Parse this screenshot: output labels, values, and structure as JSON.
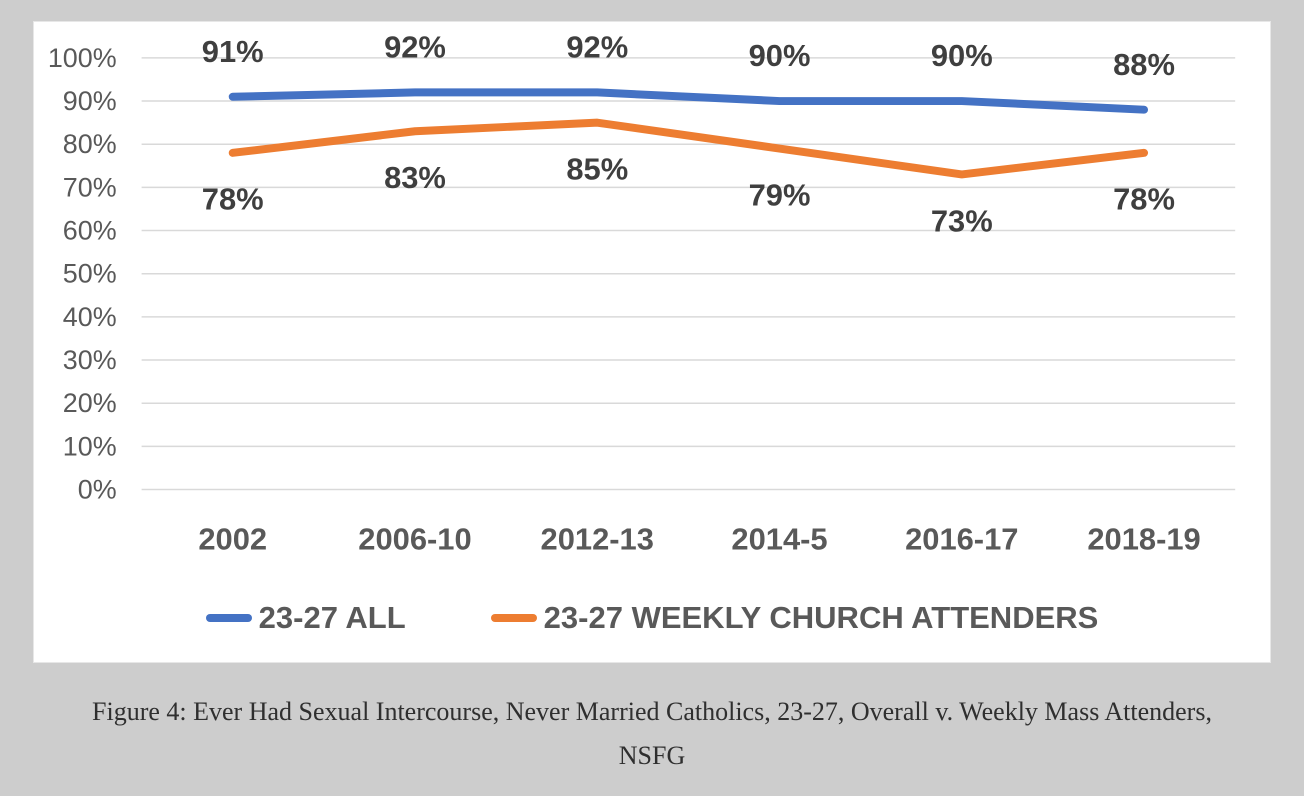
{
  "page": {
    "background_color": "#cdcdcd",
    "panel_color": "#ffffff"
  },
  "chart_data": {
    "type": "line",
    "categories": [
      "2002",
      "2006-10",
      "2012-13",
      "2014-5",
      "2016-17",
      "2018-19"
    ],
    "series": [
      {
        "name": "23-27 ALL",
        "color": "#4472C4",
        "values": [
          91,
          92,
          92,
          90,
          90,
          88
        ],
        "label_position": "above"
      },
      {
        "name": "23-27 WEEKLY CHURCH ATTENDERS",
        "color": "#ED7D31",
        "values": [
          78,
          83,
          85,
          79,
          73,
          78
        ],
        "label_position": "below"
      }
    ],
    "title": "",
    "xlabel": "",
    "ylabel": "",
    "ylim": [
      0,
      100
    ],
    "ytick_step": 10,
    "ytick_suffix": "%",
    "data_label_suffix": "%",
    "grid": true,
    "legend_position": "bottom",
    "data_labels": true,
    "colors": {
      "gridline": "#d9d9d9",
      "axis_text": "#595959",
      "data_label_text": "#3f3f3f"
    }
  },
  "caption": {
    "lines": [
      "Figure 4: Ever Had Sexual Intercourse, Never Married Catholics, 23-27, Overall v. Weekly Mass Attenders,",
      "NSFG"
    ]
  }
}
